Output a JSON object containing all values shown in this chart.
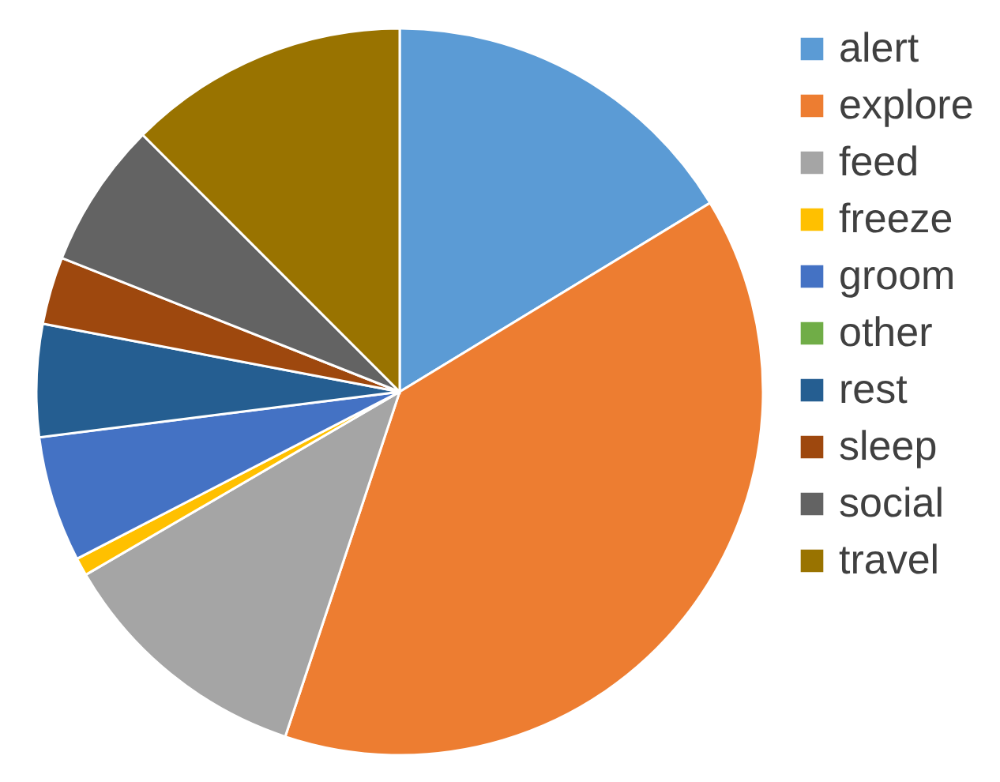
{
  "chart_data": {
    "type": "pie",
    "categories": [
      "alert",
      "explore",
      "feed",
      "freeze",
      "groom",
      "other",
      "rest",
      "sleep",
      "social",
      "travel"
    ],
    "values": [
      16.3,
      38.8,
      11.5,
      0.8,
      5.6,
      0,
      5,
      3,
      6.5,
      12.5
    ],
    "colors": [
      "#5b9bd5",
      "#ed7d31",
      "#a5a5a5",
      "#ffc000",
      "#4472c4",
      "#70ad47",
      "#255e91",
      "#9e480e",
      "#636363",
      "#997300"
    ],
    "legend": "right"
  }
}
